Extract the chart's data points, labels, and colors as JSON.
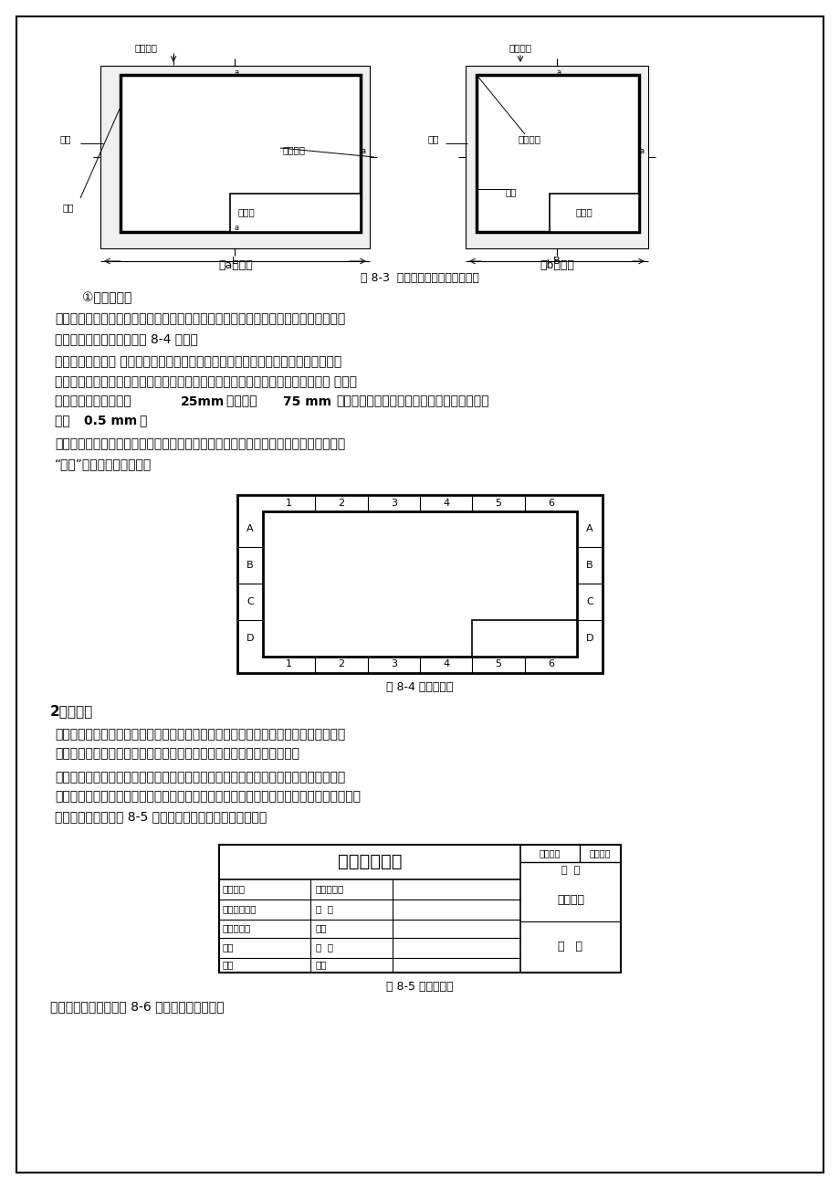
{
  "page_bg": "#ffffff",
  "border_color": "#000000",
  "text_color": "#000000",
  "fig83_caption": "图 8-3  不留装订边图样的图框格式",
  "fig84_caption": "图 8-4 图幅的分区",
  "fig85_caption": "图 8-5 标题栏格式",
  "subtitle_3": "①图纸的分区",
  "section2_title": "2、标题栏",
  "last_line": "学生在作业时，采用图 8-6 所示的标题栏格式。"
}
